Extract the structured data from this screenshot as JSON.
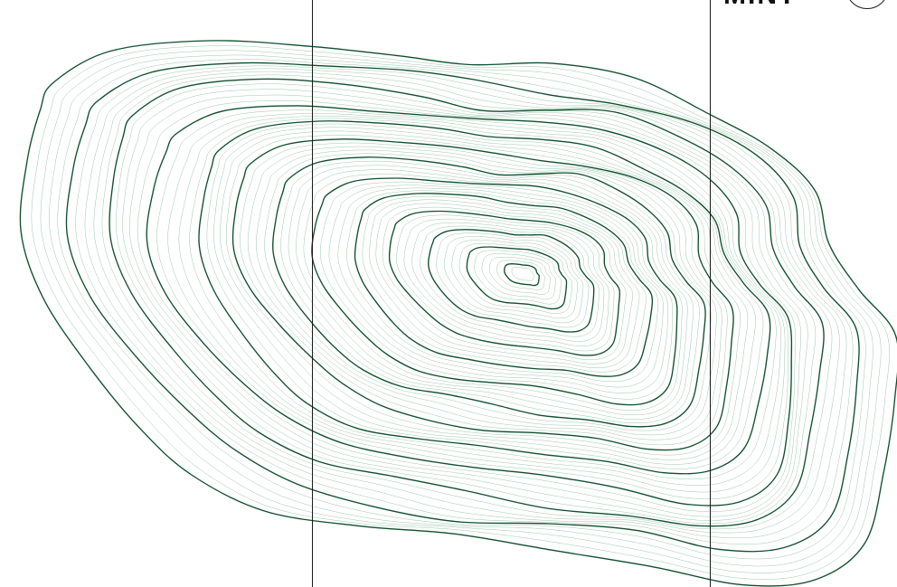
{
  "map": {
    "brand_wordmark": "MINT",
    "contour_color_major": "#0f4f2c",
    "contour_color_minor": "#6fa886",
    "background_color": "#ffffff",
    "grid_line_color": "#1a1a1a",
    "compass_icon": "compass-circle-icon"
  }
}
